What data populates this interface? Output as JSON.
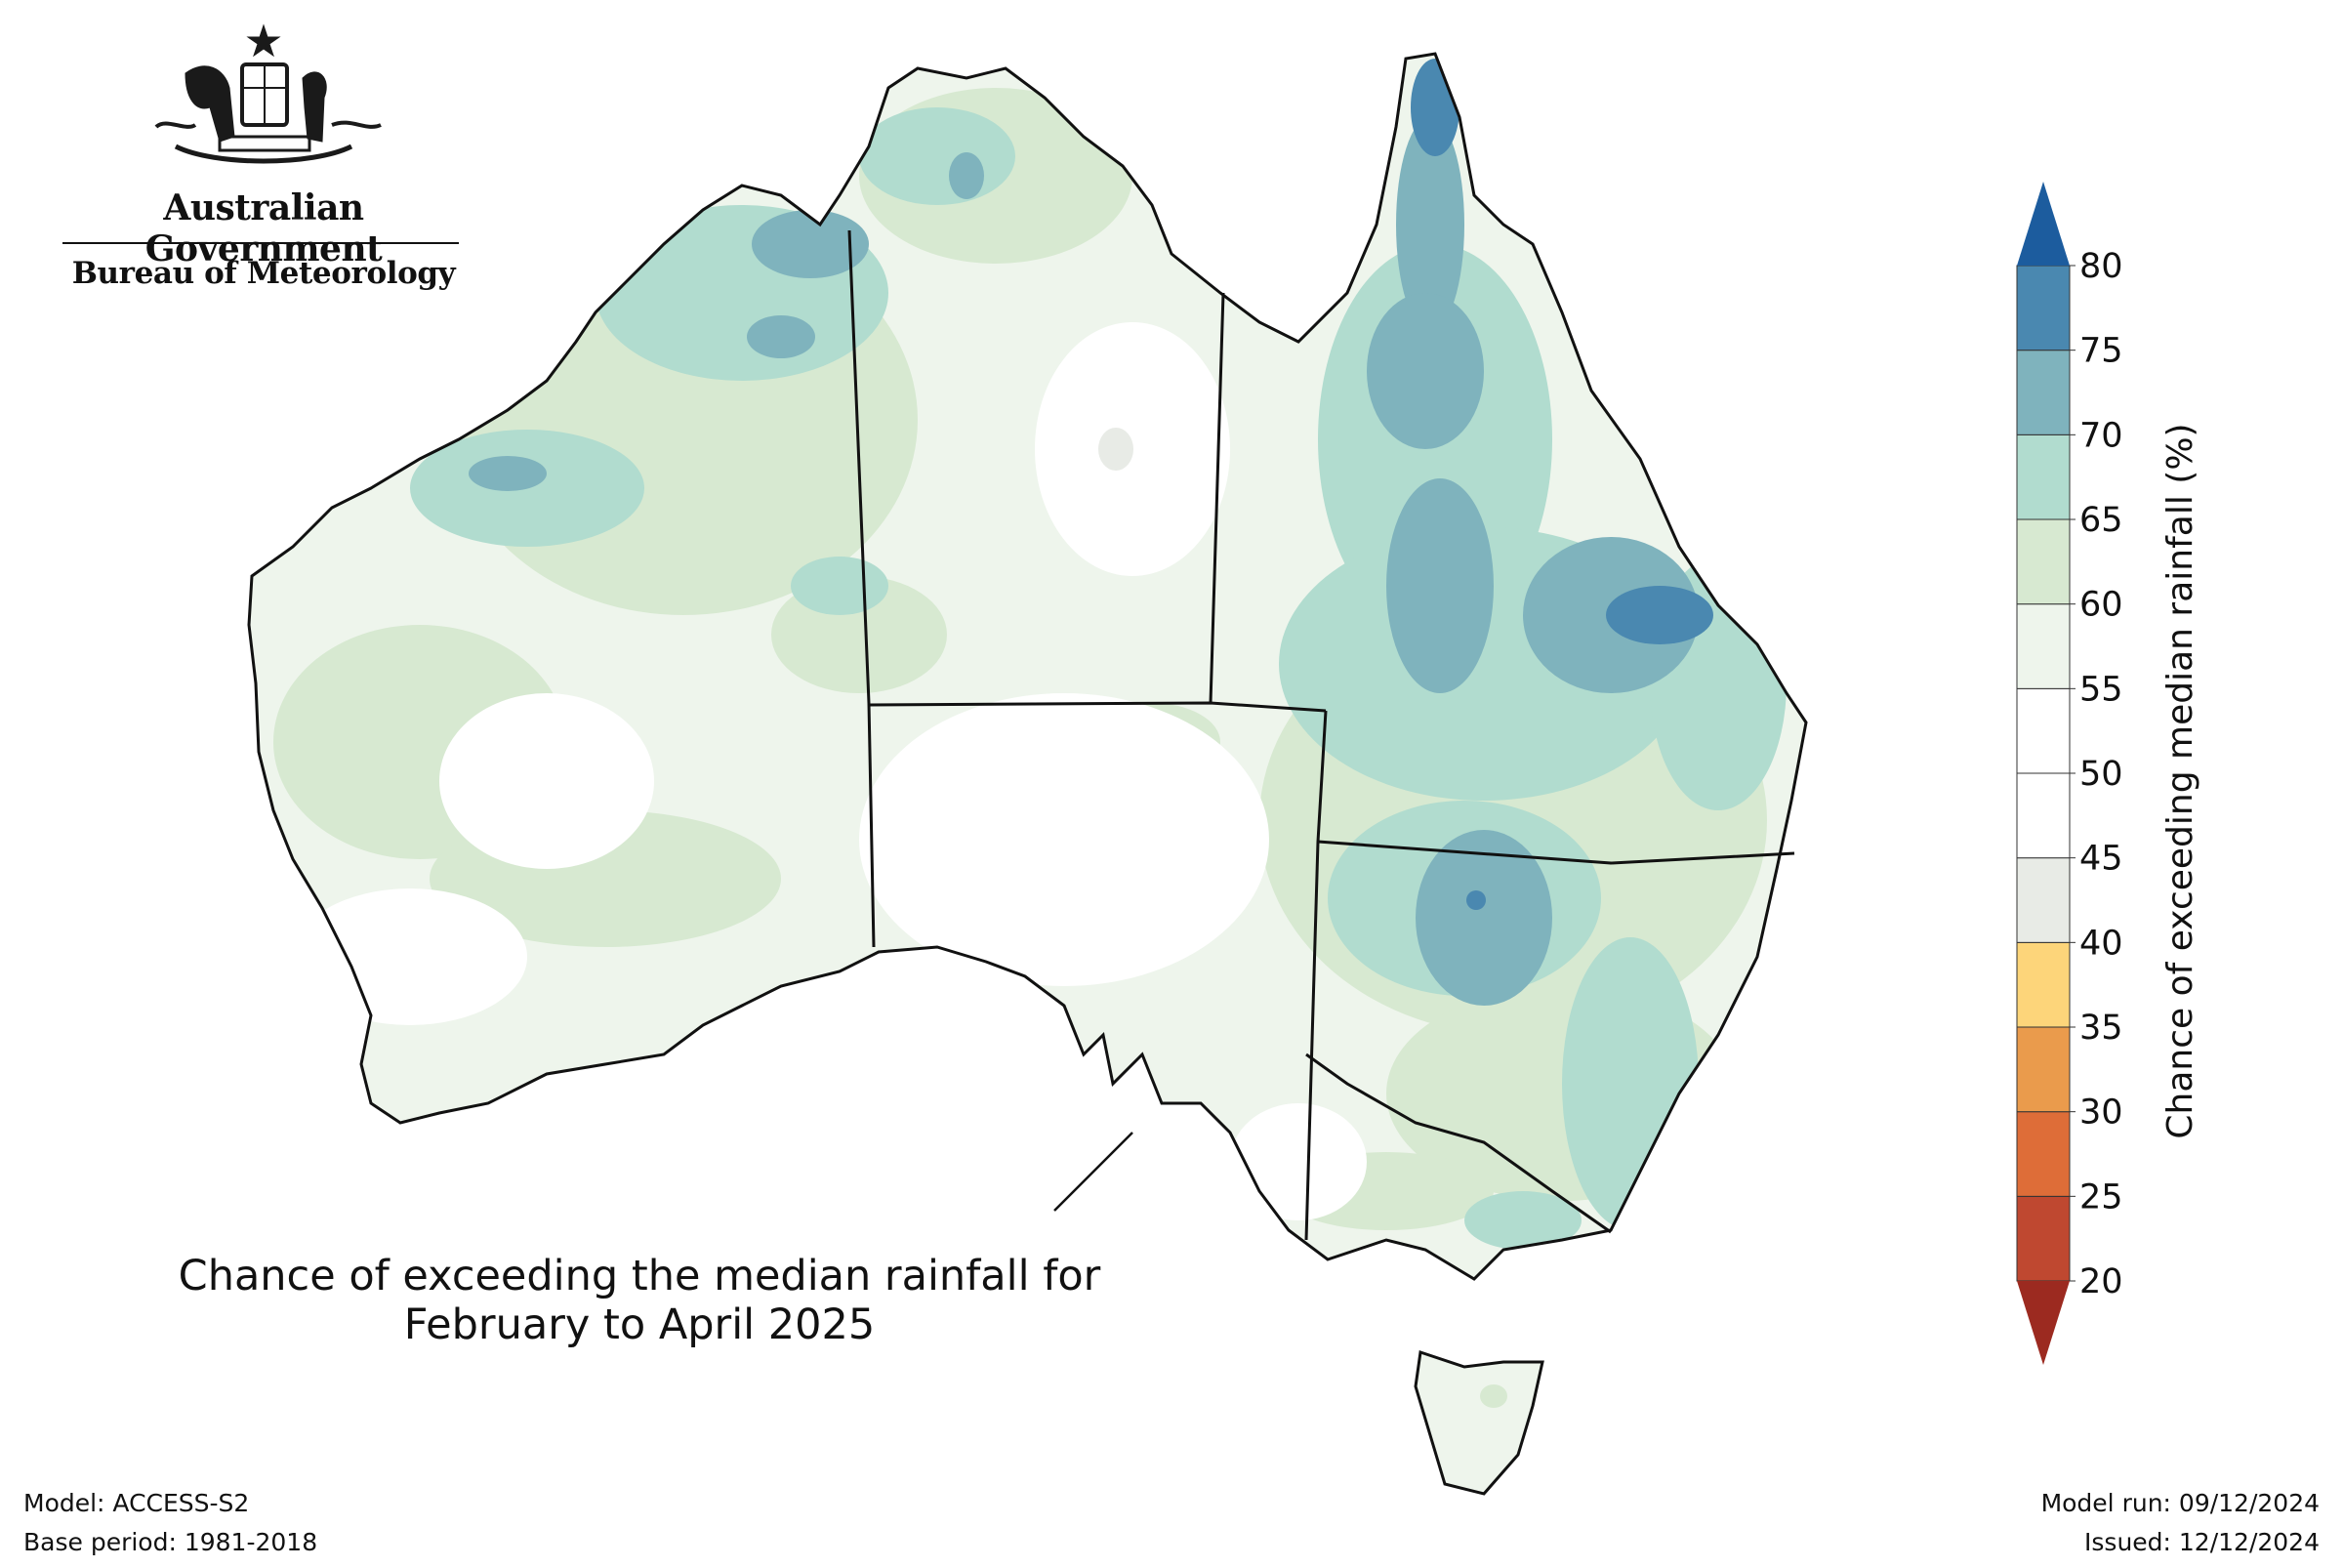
{
  "header": {
    "government": "Australian Government",
    "bureau": "Bureau of Meteorology"
  },
  "map": {
    "title_line1": "Chance of exceeding the median rainfall for",
    "title_line2": "February to April 2025",
    "colorbar": {
      "label": "Chance of exceeding median rainfall (%)",
      "ticks": [
        20,
        25,
        30,
        35,
        40,
        45,
        50,
        55,
        60,
        65,
        70,
        75,
        80
      ],
      "bins": [
        {
          "from": 20,
          "to": 25,
          "color": "#bf4830"
        },
        {
          "from": 25,
          "to": 30,
          "color": "#de6d38"
        },
        {
          "from": 30,
          "to": 35,
          "color": "#ea9b4c"
        },
        {
          "from": 35,
          "to": 40,
          "color": "#fdd57a"
        },
        {
          "from": 40,
          "to": 45,
          "color": "#e8ebe6"
        },
        {
          "from": 45,
          "to": 50,
          "color": "#ffffff"
        },
        {
          "from": 50,
          "to": 55,
          "color": "#ffffff"
        },
        {
          "from": 55,
          "to": 60,
          "color": "#eef5ec"
        },
        {
          "from": 60,
          "to": 65,
          "color": "#d7e9d1"
        },
        {
          "from": 65,
          "to": 70,
          "color": "#b1dccf"
        },
        {
          "from": 70,
          "to": 75,
          "color": "#7fb3bd"
        },
        {
          "from": 75,
          "to": 80,
          "color": "#4a88b0"
        }
      ],
      "below_color": "#9c2a20",
      "above_color": "#1c5c9e"
    }
  },
  "footer": {
    "model": "Model: ACCESS-S2",
    "base_period": "Base period: 1981-2018",
    "model_run": "Model run: 09/12/2024",
    "issued": "Issued: 12/12/2024"
  }
}
